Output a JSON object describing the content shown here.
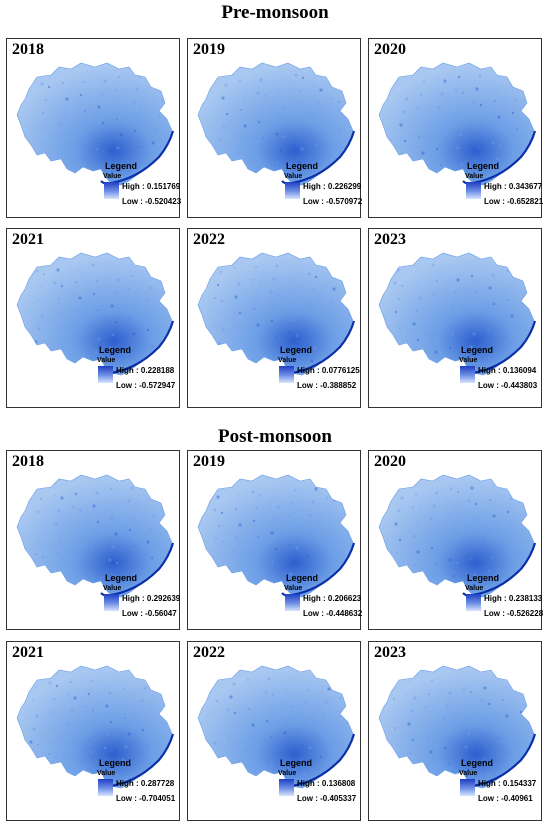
{
  "colors": {
    "fill_light": "#a9c8f1",
    "fill_mid": "#6c9ee6",
    "fill_dark": "#2d5fcf",
    "river": "#0b2fa8"
  },
  "legend": {
    "title": "Legend",
    "value": "Value",
    "high_prefix": "High : ",
    "low_prefix": "Low : "
  },
  "pre": {
    "title": "Pre-monsoon",
    "panels": [
      {
        "year": "2018",
        "high": "0.151769",
        "low": "-0.520423"
      },
      {
        "year": "2019",
        "high": "0.226299",
        "low": "-0.570972"
      },
      {
        "year": "2020",
        "high": "0.343677",
        "low": "-0.652821"
      },
      {
        "year": "2021",
        "high": "0.228188",
        "low": "-0.572947"
      },
      {
        "year": "2022",
        "high": "0.0776125",
        "low": "-0.388852"
      },
      {
        "year": "2023",
        "high": "0.136094",
        "low": "-0.443803"
      }
    ]
  },
  "post": {
    "title": "Post-monsoon",
    "panels": [
      {
        "year": "2018",
        "high": "0.292639",
        "low": "-0.56047"
      },
      {
        "year": "2019",
        "high": "0.206623",
        "low": "-0.448632"
      },
      {
        "year": "2020",
        "high": "0.238133",
        "low": "-0.526228"
      },
      {
        "year": "2021",
        "high": "0.287728",
        "low": "-0.704051"
      },
      {
        "year": "2022",
        "high": "0.136808",
        "low": "-0.405337"
      },
      {
        "year": "2023",
        "high": "0.154337",
        "low": "-0.40961"
      }
    ]
  }
}
